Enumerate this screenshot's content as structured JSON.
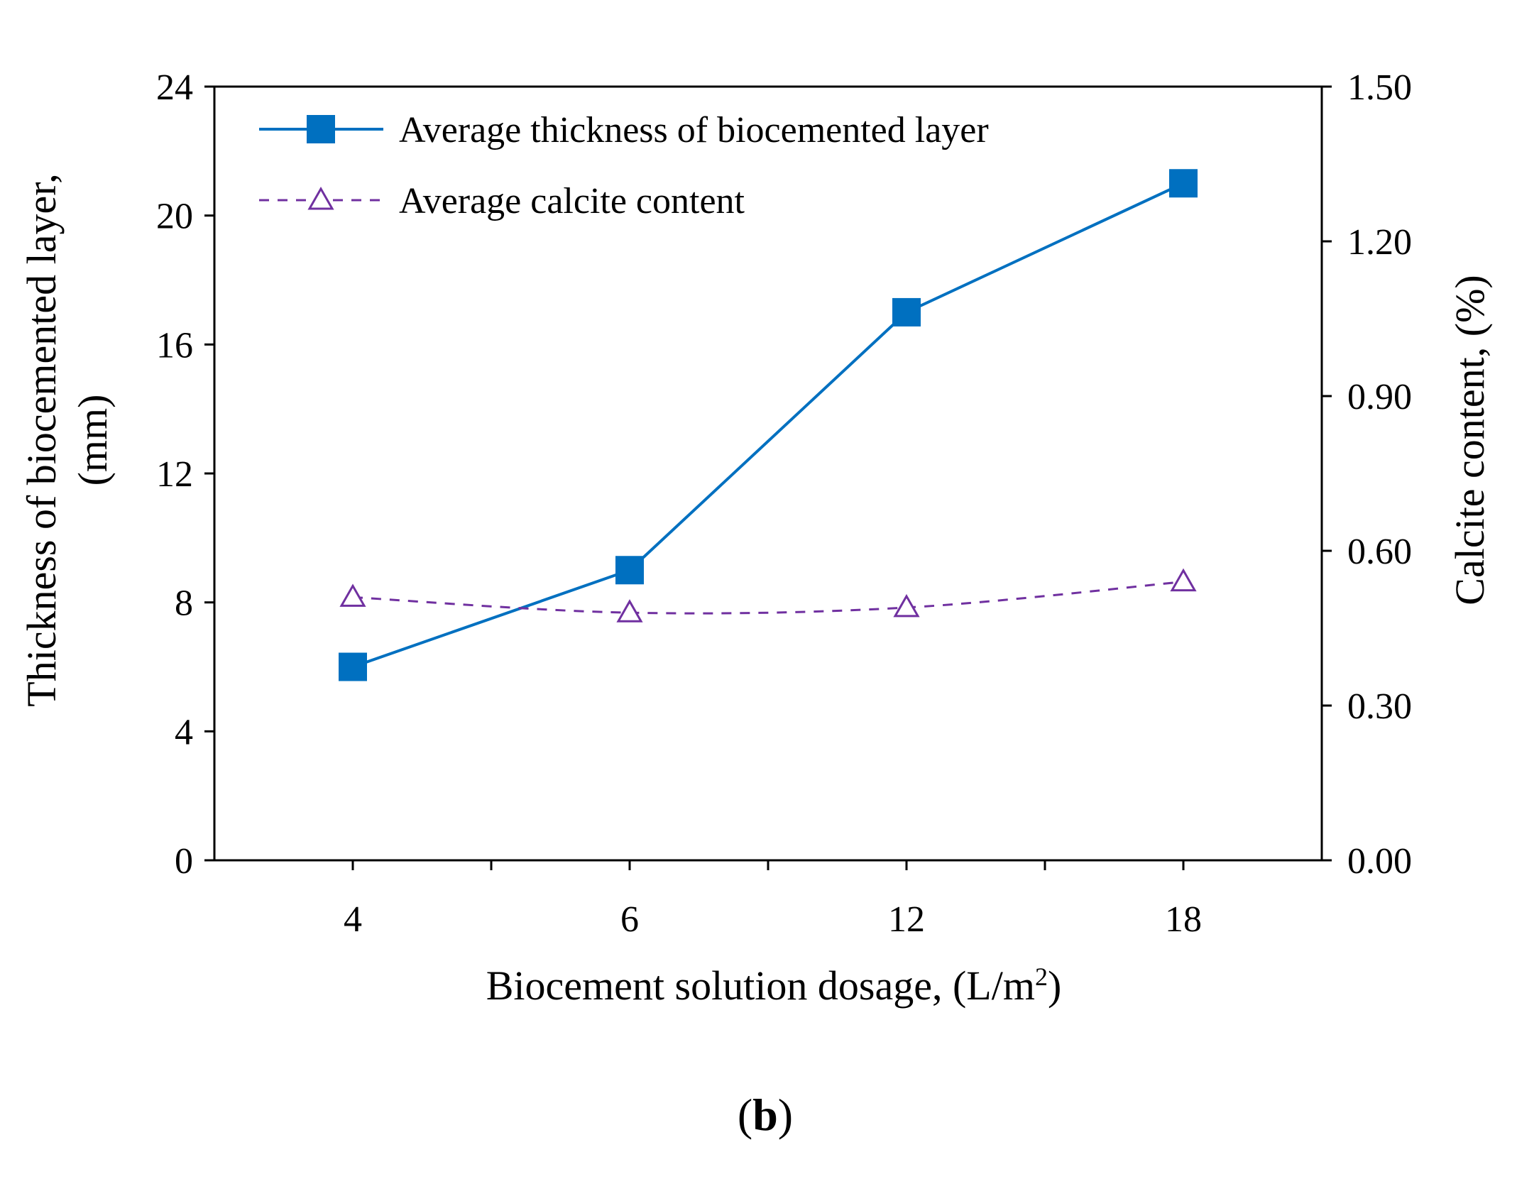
{
  "chart_data": {
    "type": "line",
    "categories": [
      "4",
      "6",
      "12",
      "18"
    ],
    "series": [
      {
        "name": "Average thickness of biocemented layer",
        "axis": "left",
        "values": [
          6,
          9,
          17,
          21
        ],
        "color": "#0070c0",
        "line_style": "solid",
        "marker": "filled-square"
      },
      {
        "name": "Average calcite content",
        "axis": "right",
        "values": [
          0.51,
          0.48,
          0.49,
          0.54
        ],
        "color": "#7030a0",
        "line_style": "dashed",
        "marker": "open-triangle"
      }
    ],
    "xlabel_main": "Biocement solution dosage, (L/m",
    "xlabel_sup": "2",
    "xlabel_close": ")",
    "ylabel_line1": "Thickness of biocemented layer,",
    "ylabel_line2": "(mm)",
    "y2label": "Calcite content, (%)",
    "ylim": [
      0,
      24
    ],
    "yticks": [
      "0",
      "4",
      "8",
      "12",
      "16",
      "20",
      "24"
    ],
    "y2lim": [
      0,
      1.5
    ],
    "y2ticks": [
      "0.00",
      "0.30",
      "0.60",
      "0.90",
      "1.20",
      "1.50"
    ],
    "legend_position": "top-left",
    "grid": false
  },
  "caption": {
    "open": "(",
    "letter": "b",
    "close": ")"
  }
}
